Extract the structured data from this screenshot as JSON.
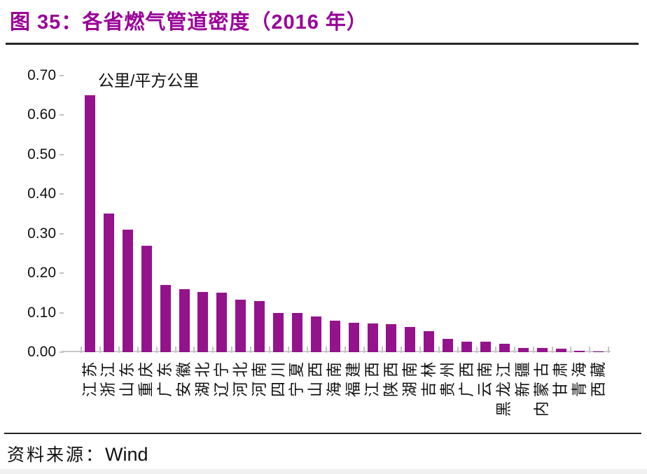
{
  "figure": {
    "title": "图 35：各省燃气管道密度（2016 年）",
    "source_label": "资料来源：",
    "source_value": "Wind"
  },
  "chart_data": {
    "type": "bar",
    "title": "图 35：各省燃气管道密度（2016 年）",
    "unit_label": "公里/平方公里",
    "categories": [
      "江苏",
      "浙江",
      "山东",
      "重庆",
      "广东",
      "安徽",
      "湖北",
      "辽宁",
      "河北",
      "河南",
      "四川",
      "宁夏",
      "山西",
      "海南",
      "福建",
      "江西",
      "陕西",
      "湖南",
      "吉林",
      "贵州",
      "广西",
      "云南",
      "黑龙江",
      "新疆",
      "内蒙古",
      "甘肃",
      "青海",
      "西藏"
    ],
    "values": [
      0.65,
      0.35,
      0.31,
      0.27,
      0.17,
      0.16,
      0.153,
      0.15,
      0.133,
      0.13,
      0.1,
      0.1,
      0.09,
      0.079,
      0.075,
      0.073,
      0.071,
      0.064,
      0.053,
      0.033,
      0.026,
      0.026,
      0.021,
      0.011,
      0.01,
      0.009,
      0.004,
      0.002
    ],
    "ylim": [
      0.0,
      0.7
    ],
    "ytick_labels": [
      "0.00",
      "0.10",
      "0.20",
      "0.30",
      "0.40",
      "0.50",
      "0.60",
      "0.70"
    ],
    "grid": false,
    "legend": null,
    "bar_color": "#94138C",
    "source": "资料来源：Wind"
  },
  "colors": {
    "title": "#990099",
    "bar": "#94138C",
    "axis_line": "#c9c9c9",
    "text": "#111111",
    "rule": "#262626"
  }
}
